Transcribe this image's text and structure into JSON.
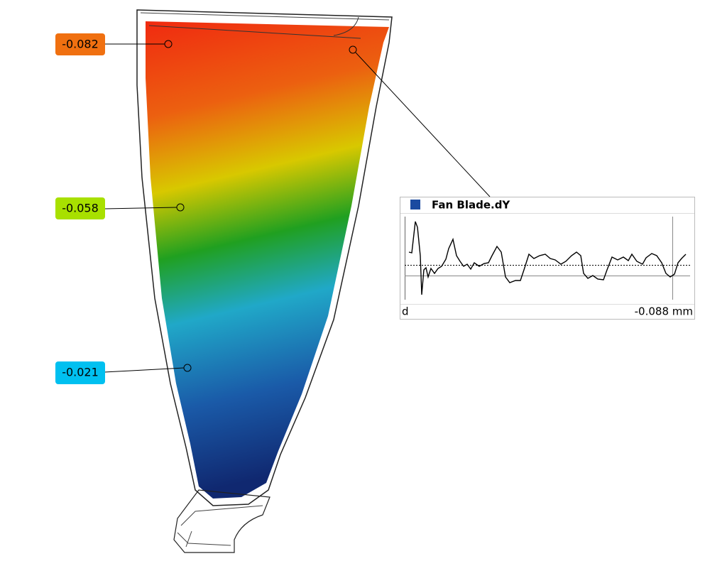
{
  "labels": [
    {
      "value": "-0.082"
    },
    {
      "value": "-0.058"
    },
    {
      "value": "-0.021"
    }
  ],
  "inspection_panel": {
    "title": "Fan Blade.dY",
    "footer_left": "d",
    "footer_right": "-0.088 mm"
  }
}
